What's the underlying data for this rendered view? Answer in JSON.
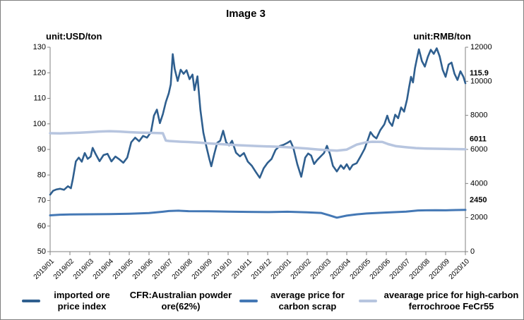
{
  "figure": {
    "title": "Image 3",
    "left_axis_unit": "unit:USD/ton",
    "right_axis_unit": "unit:RMB/ton"
  },
  "legend": {
    "items": [
      {
        "marker": "#2F5F8F",
        "label": "imported ore price index"
      },
      {
        "marker": null,
        "label": "CFR:Australian powder ore(62%)"
      },
      {
        "marker": "#4478B5",
        "label": "average price for carbon scrap"
      },
      {
        "marker": "#B7C5DF",
        "label": "avearage price for high-carbon ferrochrooe FeCr55"
      }
    ]
  },
  "chart_data": {
    "type": "line",
    "title": "Image 3",
    "grid": false,
    "legend_position": "bottom",
    "x_axis": {
      "labels": [
        "2019/01",
        "2019/02",
        "2019/03",
        "2019/04",
        "2019/05",
        "2019/06",
        "2019/07",
        "2019/08",
        "2019/09",
        "2019/10",
        "2019/11",
        "2019/12",
        "2020/01",
        "2020/02",
        "2020/03",
        "2020/04",
        "2020/05",
        "2020/06",
        "2020/07",
        "2020/08",
        "2020/09",
        "2020/10"
      ],
      "range": [
        0,
        21
      ]
    },
    "left_axis": {
      "unit": "unit:USD/ton",
      "range": [
        50,
        130
      ],
      "ticks": [
        130,
        120,
        110,
        100,
        90,
        80,
        70,
        60,
        50
      ]
    },
    "right_axis": {
      "unit": "unit:RMB/ton",
      "range": [
        0,
        12000
      ],
      "ticks": [
        12000,
        10000,
        8000,
        6000,
        4000,
        2000,
        0
      ]
    },
    "series": [
      {
        "name": "imported ore price index CFR:Australian powder ore(62%)",
        "axis": "left",
        "color": "#2F5F8F",
        "width": 2.6,
        "points": [
          [
            0,
            72.3
          ],
          [
            0.15,
            73.8
          ],
          [
            0.3,
            74.3
          ],
          [
            0.5,
            74.6
          ],
          [
            0.7,
            74.2
          ],
          [
            0.9,
            75.6
          ],
          [
            1.05,
            74.8
          ],
          [
            1.15,
            78.5
          ],
          [
            1.3,
            85.3
          ],
          [
            1.45,
            86.8
          ],
          [
            1.6,
            85.2
          ],
          [
            1.75,
            88.6
          ],
          [
            1.9,
            86.3
          ],
          [
            2.05,
            87.2
          ],
          [
            2.15,
            90.6
          ],
          [
            2.3,
            88.2
          ],
          [
            2.5,
            85.4
          ],
          [
            2.7,
            87.8
          ],
          [
            2.9,
            88.3
          ],
          [
            3.1,
            85.3
          ],
          [
            3.3,
            87.2
          ],
          [
            3.5,
            86.1
          ],
          [
            3.7,
            84.8
          ],
          [
            3.9,
            86.8
          ],
          [
            4.1,
            92.8
          ],
          [
            4.3,
            94.6
          ],
          [
            4.5,
            93.2
          ],
          [
            4.7,
            95.3
          ],
          [
            4.9,
            94.6
          ],
          [
            5.1,
            96.8
          ],
          [
            5.25,
            103.2
          ],
          [
            5.4,
            105.6
          ],
          [
            5.55,
            100.3
          ],
          [
            5.7,
            103.8
          ],
          [
            5.85,
            108.5
          ],
          [
            6.0,
            112.0
          ],
          [
            6.1,
            115.5
          ],
          [
            6.2,
            127.3
          ],
          [
            6.3,
            121.5
          ],
          [
            6.45,
            116.8
          ],
          [
            6.6,
            121.2
          ],
          [
            6.75,
            119.6
          ],
          [
            6.9,
            121.0
          ],
          [
            7.05,
            117.5
          ],
          [
            7.2,
            119.3
          ],
          [
            7.3,
            113.2
          ],
          [
            7.45,
            118.6
          ],
          [
            7.6,
            105.4
          ],
          [
            7.75,
            96.5
          ],
          [
            7.9,
            91.2
          ],
          [
            8.05,
            86.3
          ],
          [
            8.15,
            83.4
          ],
          [
            8.3,
            88.2
          ],
          [
            8.45,
            92.6
          ],
          [
            8.6,
            93.4
          ],
          [
            8.75,
            97.3
          ],
          [
            8.9,
            92.8
          ],
          [
            9.05,
            91.6
          ],
          [
            9.2,
            93.4
          ],
          [
            9.4,
            88.7
          ],
          [
            9.6,
            87.3
          ],
          [
            9.8,
            88.6
          ],
          [
            10.0,
            85.2
          ],
          [
            10.2,
            83.6
          ],
          [
            10.4,
            81.2
          ],
          [
            10.6,
            78.9
          ],
          [
            10.8,
            82.6
          ],
          [
            11.0,
            84.8
          ],
          [
            11.2,
            86.3
          ],
          [
            11.4,
            89.8
          ],
          [
            11.6,
            91.3
          ],
          [
            11.8,
            91.8
          ],
          [
            12.0,
            92.6
          ],
          [
            12.15,
            93.3
          ],
          [
            12.3,
            90.6
          ],
          [
            12.5,
            84.2
          ],
          [
            12.7,
            79.3
          ],
          [
            12.9,
            86.8
          ],
          [
            13.05,
            88.4
          ],
          [
            13.2,
            87.6
          ],
          [
            13.35,
            84.3
          ],
          [
            13.5,
            85.8
          ],
          [
            13.7,
            87.4
          ],
          [
            13.85,
            88.6
          ],
          [
            14.0,
            91.4
          ],
          [
            14.15,
            88.2
          ],
          [
            14.3,
            83.6
          ],
          [
            14.5,
            81.4
          ],
          [
            14.7,
            83.8
          ],
          [
            14.85,
            82.4
          ],
          [
            15.0,
            84.2
          ],
          [
            15.15,
            82.1
          ],
          [
            15.3,
            83.9
          ],
          [
            15.5,
            84.6
          ],
          [
            15.7,
            87.3
          ],
          [
            15.9,
            90.2
          ],
          [
            16.05,
            93.4
          ],
          [
            16.2,
            96.8
          ],
          [
            16.35,
            95.2
          ],
          [
            16.5,
            94.3
          ],
          [
            16.7,
            97.6
          ],
          [
            16.9,
            99.8
          ],
          [
            17.05,
            103.2
          ],
          [
            17.15,
            100.8
          ],
          [
            17.3,
            99.2
          ],
          [
            17.45,
            103.6
          ],
          [
            17.6,
            102.2
          ],
          [
            17.75,
            106.4
          ],
          [
            17.9,
            104.8
          ],
          [
            18.05,
            109.6
          ],
          [
            18.15,
            114.2
          ],
          [
            18.25,
            118.4
          ],
          [
            18.35,
            116.2
          ],
          [
            18.45,
            121.8
          ],
          [
            18.55,
            125.6
          ],
          [
            18.65,
            129.2
          ],
          [
            18.8,
            124.6
          ],
          [
            18.95,
            122.4
          ],
          [
            19.1,
            126.2
          ],
          [
            19.25,
            129.0
          ],
          [
            19.4,
            127.4
          ],
          [
            19.55,
            129.6
          ],
          [
            19.7,
            126.4
          ],
          [
            19.85,
            121.2
          ],
          [
            20.0,
            118.4
          ],
          [
            20.15,
            123.2
          ],
          [
            20.3,
            124.0
          ],
          [
            20.45,
            119.6
          ],
          [
            20.6,
            117.2
          ],
          [
            20.75,
            120.6
          ],
          [
            20.9,
            118.4
          ],
          [
            21,
            115.9
          ]
        ]
      },
      {
        "name": "average price for carbon scrap",
        "axis": "right",
        "color": "#4478B5",
        "width": 3,
        "points": [
          [
            0,
            2130
          ],
          [
            0.5,
            2170
          ],
          [
            1,
            2185
          ],
          [
            2,
            2195
          ],
          [
            3,
            2205
          ],
          [
            4,
            2225
          ],
          [
            5,
            2265
          ],
          [
            5.7,
            2340
          ],
          [
            6,
            2385
          ],
          [
            6.5,
            2405
          ],
          [
            7,
            2375
          ],
          [
            8,
            2365
          ],
          [
            9,
            2350
          ],
          [
            10,
            2335
          ],
          [
            11,
            2320
          ],
          [
            12,
            2340
          ],
          [
            13,
            2310
          ],
          [
            13.7,
            2270
          ],
          [
            14.1,
            2140
          ],
          [
            14.5,
            1995
          ],
          [
            15,
            2115
          ],
          [
            15.5,
            2190
          ],
          [
            16,
            2240
          ],
          [
            17,
            2295
          ],
          [
            18,
            2345
          ],
          [
            18.6,
            2415
          ],
          [
            19,
            2425
          ],
          [
            19.5,
            2435
          ],
          [
            20,
            2425
          ],
          [
            20.5,
            2440
          ],
          [
            21,
            2450
          ]
        ]
      },
      {
        "name": "avearage price for high-carbon ferrochrooe FeCr55",
        "axis": "right",
        "color": "#B7C5DF",
        "width": 3.5,
        "points": [
          [
            0,
            6950
          ],
          [
            0.5,
            6945
          ],
          [
            1,
            6960
          ],
          [
            1.5,
            6985
          ],
          [
            2,
            7015
          ],
          [
            2.5,
            7050
          ],
          [
            3,
            7070
          ],
          [
            3.5,
            7050
          ],
          [
            4,
            7015
          ],
          [
            4.5,
            6990
          ],
          [
            5,
            6975
          ],
          [
            5.4,
            6960
          ],
          [
            5.7,
            6950
          ],
          [
            5.85,
            6520
          ],
          [
            6,
            6495
          ],
          [
            6.5,
            6460
          ],
          [
            7,
            6435
          ],
          [
            7.5,
            6400
          ],
          [
            8,
            6355
          ],
          [
            8.5,
            6320
          ],
          [
            9,
            6285
          ],
          [
            9.5,
            6250
          ],
          [
            10,
            6225
          ],
          [
            10.5,
            6200
          ],
          [
            11,
            6180
          ],
          [
            11.5,
            6160
          ],
          [
            12,
            6130
          ],
          [
            12.5,
            6095
          ],
          [
            13,
            6050
          ],
          [
            13.5,
            6000
          ],
          [
            14,
            5960
          ],
          [
            14.5,
            5925
          ],
          [
            15,
            5990
          ],
          [
            15.5,
            6280
          ],
          [
            16,
            6420
          ],
          [
            16.3,
            6450
          ],
          [
            16.8,
            6440
          ],
          [
            17.1,
            6310
          ],
          [
            17.5,
            6190
          ],
          [
            18,
            6130
          ],
          [
            18.5,
            6080
          ],
          [
            19,
            6055
          ],
          [
            19.5,
            6040
          ],
          [
            20,
            6030
          ],
          [
            20.5,
            6020
          ],
          [
            21,
            6011
          ]
        ]
      }
    ],
    "end_labels": [
      {
        "text": "115.9",
        "value": 115.9,
        "axis": "left"
      },
      {
        "text": "6011",
        "value": 6011,
        "axis": "right"
      },
      {
        "text": "2450",
        "value": 2450,
        "axis": "right"
      }
    ]
  }
}
